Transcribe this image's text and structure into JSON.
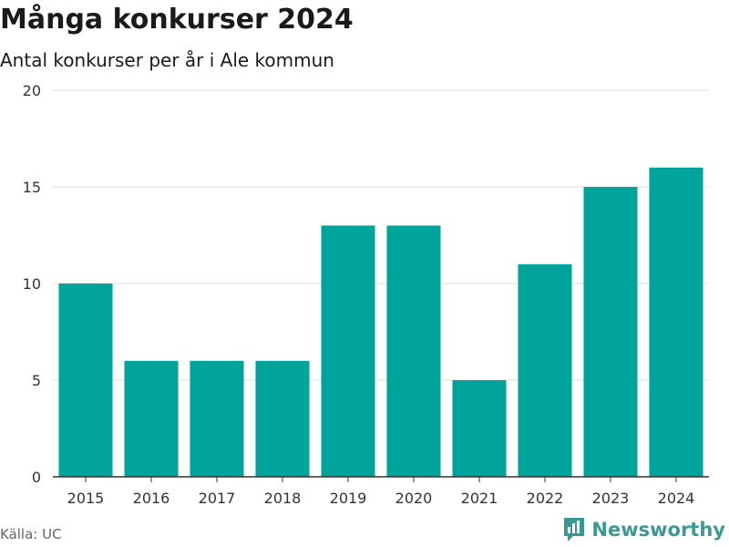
{
  "header": {
    "title": "Många konkurser 2024",
    "subtitle": "Antal konkurser per år i Ale kommun"
  },
  "footer": {
    "source": "Källa: UC",
    "brand": "Newsworthy",
    "brand_icon": "bar-chart-bubble-icon",
    "brand_color": "#3a9a93"
  },
  "chart_data": {
    "type": "bar",
    "categories": [
      "2015",
      "2016",
      "2017",
      "2018",
      "2019",
      "2020",
      "2021",
      "2022",
      "2023",
      "2024"
    ],
    "values": [
      10,
      6,
      6,
      6,
      13,
      13,
      5,
      11,
      15,
      16
    ],
    "ylim": [
      0,
      20
    ],
    "yticks": [
      0,
      5,
      10,
      15,
      20
    ],
    "grid": true,
    "bar_color": "#00a49a",
    "xlabel": "",
    "ylabel": ""
  }
}
